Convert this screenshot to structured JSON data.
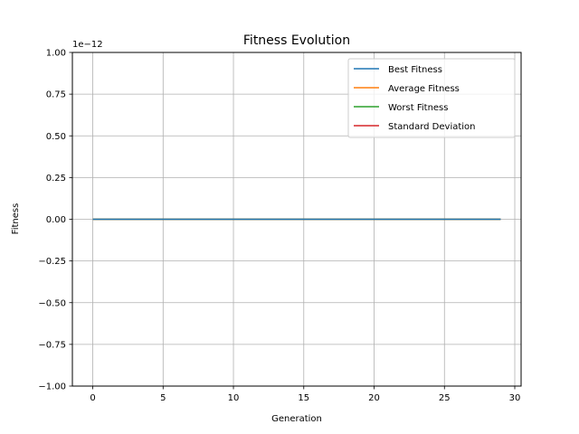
{
  "chart_data": {
    "type": "line",
    "title": "Fitness Evolution",
    "xlabel": "Generation",
    "ylabel": "Fitness",
    "y_offset_label": "1e−12",
    "xlim": [
      -1.45,
      30.45
    ],
    "ylim": [
      -1.0,
      1.0
    ],
    "x_ticks": [
      0,
      5,
      10,
      15,
      20,
      25,
      30
    ],
    "x_tick_labels": [
      "0",
      "5",
      "10",
      "15",
      "20",
      "25",
      "30"
    ],
    "y_ticks": [
      1.0,
      0.75,
      0.5,
      0.25,
      0.0,
      -0.25,
      -0.5,
      -0.75,
      -1.0
    ],
    "y_tick_labels": [
      "1.00",
      "0.75",
      "0.50",
      "0.25",
      "0.00",
      "−0.25",
      "−0.50",
      "−0.75",
      "−1.00"
    ],
    "grid": true,
    "legend_position": "top-right",
    "series": [
      {
        "name": "Best Fitness",
        "color": "#1f77b4",
        "x": [
          0,
          1,
          2,
          3,
          4,
          5,
          6,
          7,
          8,
          9,
          10,
          11,
          12,
          13,
          14,
          15,
          16,
          17,
          18,
          19,
          20,
          21,
          22,
          23,
          24,
          25,
          26,
          27,
          28,
          29
        ],
        "values": [
          0,
          0,
          0,
          0,
          0,
          0,
          0,
          0,
          0,
          0,
          0,
          0,
          0,
          0,
          0,
          0,
          0,
          0,
          0,
          0,
          0,
          0,
          0,
          0,
          0,
          0,
          0,
          0,
          0,
          0
        ]
      },
      {
        "name": "Average Fitness",
        "color": "#ff7f0e",
        "x": [
          0,
          1,
          2,
          3,
          4,
          5,
          6,
          7,
          8,
          9,
          10,
          11,
          12,
          13,
          14,
          15,
          16,
          17,
          18,
          19,
          20,
          21,
          22,
          23,
          24,
          25,
          26,
          27,
          28,
          29
        ],
        "values": [
          0,
          0,
          0,
          0,
          0,
          0,
          0,
          0,
          0,
          0,
          0,
          0,
          0,
          0,
          0,
          0,
          0,
          0,
          0,
          0,
          0,
          0,
          0,
          0,
          0,
          0,
          0,
          0,
          0,
          0
        ]
      },
      {
        "name": "Worst Fitness",
        "color": "#2ca02c",
        "x": [
          0,
          1,
          2,
          3,
          4,
          5,
          6,
          7,
          8,
          9,
          10,
          11,
          12,
          13,
          14,
          15,
          16,
          17,
          18,
          19,
          20,
          21,
          22,
          23,
          24,
          25,
          26,
          27,
          28,
          29
        ],
        "values": [
          0,
          0,
          0,
          0,
          0,
          0,
          0,
          0,
          0,
          0,
          0,
          0,
          0,
          0,
          0,
          0,
          0,
          0,
          0,
          0,
          0,
          0,
          0,
          0,
          0,
          0,
          0,
          0,
          0,
          0
        ]
      },
      {
        "name": "Standard Deviation",
        "color": "#d62728",
        "x": [
          0,
          1,
          2,
          3,
          4,
          5,
          6,
          7,
          8,
          9,
          10,
          11,
          12,
          13,
          14,
          15,
          16,
          17,
          18,
          19,
          20,
          21,
          22,
          23,
          24,
          25,
          26,
          27,
          28,
          29
        ],
        "values": [
          0,
          0,
          0,
          0,
          0,
          0,
          0,
          0,
          0,
          0,
          0,
          0,
          0,
          0,
          0,
          0,
          0,
          0,
          0,
          0,
          0,
          0,
          0,
          0,
          0,
          0,
          0,
          0,
          0,
          0
        ]
      }
    ]
  }
}
